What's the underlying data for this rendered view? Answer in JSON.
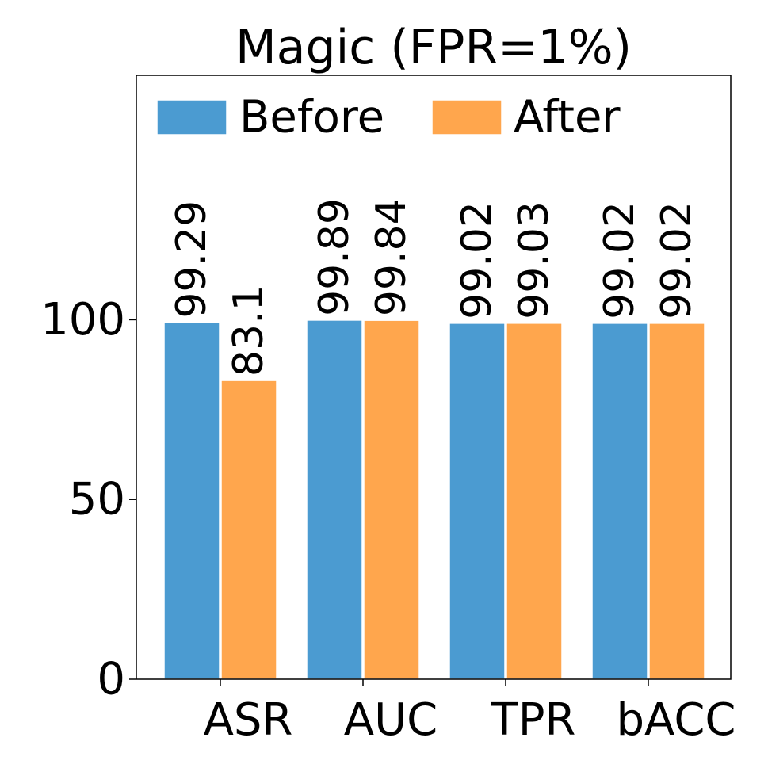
{
  "chart_data": {
    "type": "bar",
    "title": "Magic (FPR=1%)",
    "categories": [
      "ASR",
      "AUC",
      "TPR",
      "bACC"
    ],
    "series": [
      {
        "name": "Before",
        "values": [
          99.29,
          99.89,
          99.02,
          99.02
        ],
        "labels": [
          "99.29",
          "99.89",
          "99.02",
          "99.02"
        ]
      },
      {
        "name": "After",
        "values": [
          83.1,
          99.84,
          99.03,
          99.02
        ],
        "labels": [
          "83.1",
          "99.84",
          "99.03",
          "99.02"
        ]
      }
    ],
    "xlabel": "",
    "ylabel": "",
    "ylim": [
      0,
      168
    ],
    "yticks": [
      0,
      50,
      100
    ],
    "ytick_labels": [
      "0",
      "50",
      "100"
    ],
    "legend_position": "top",
    "grid": false,
    "colors": {
      "Before": "#4b9bd1",
      "After": "#ffa64d"
    }
  }
}
